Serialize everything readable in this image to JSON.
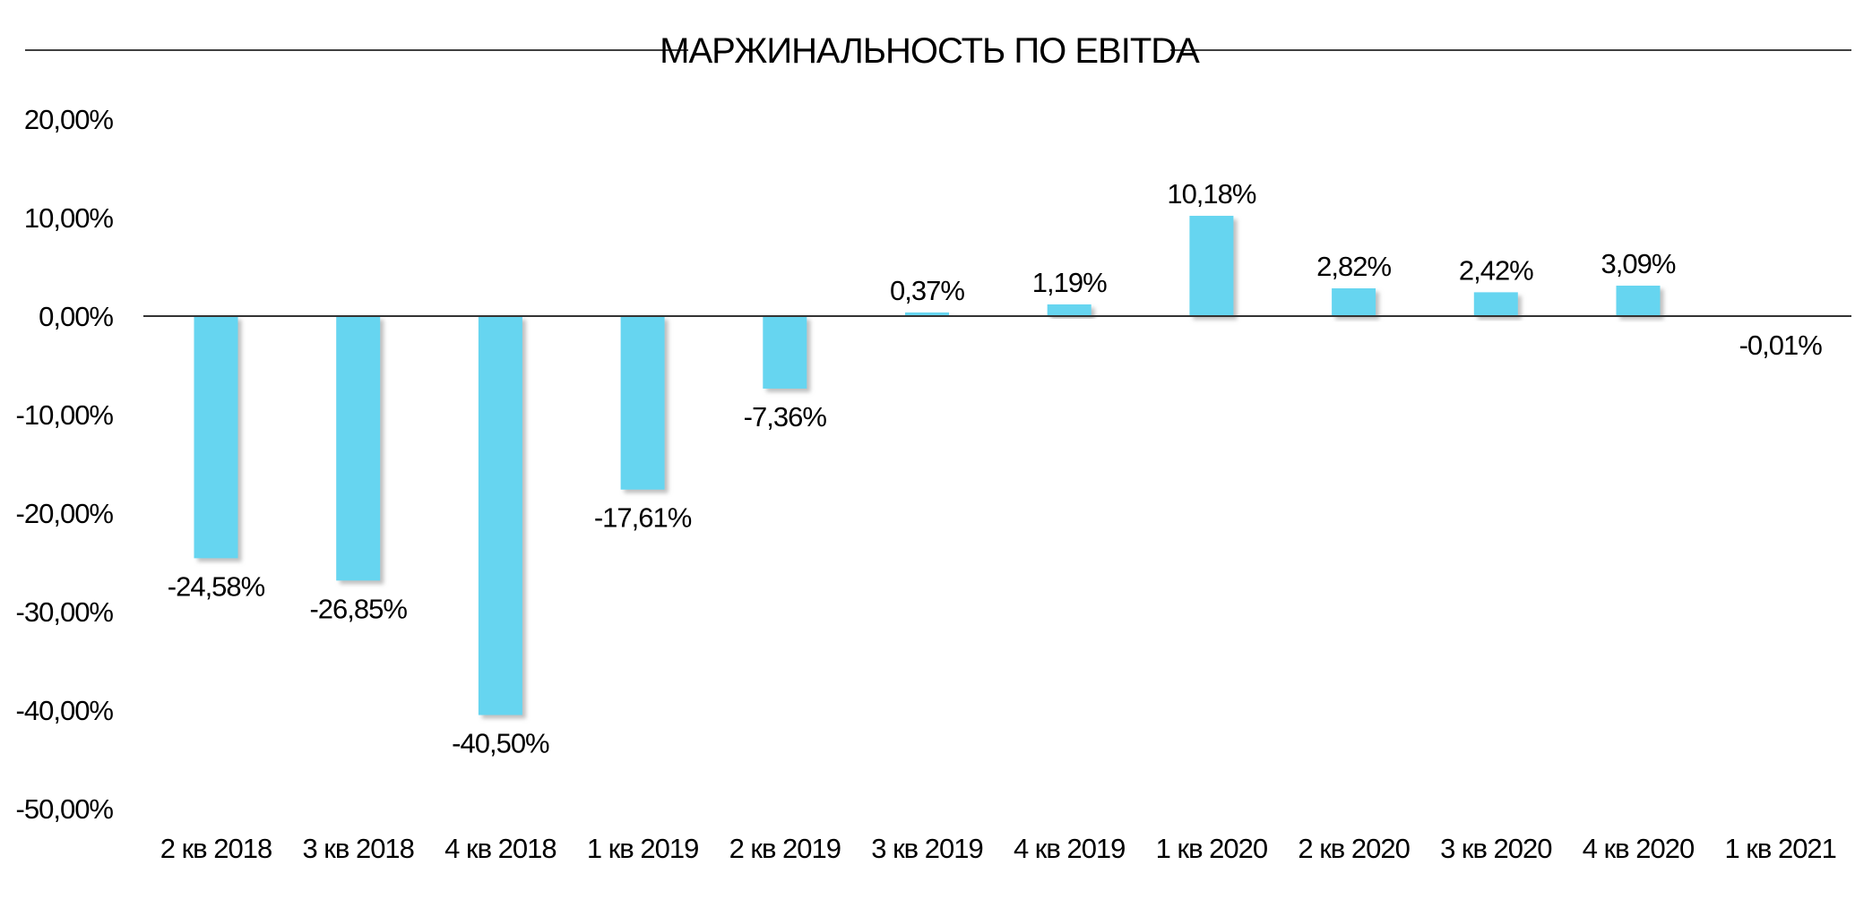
{
  "chart_data": {
    "type": "bar",
    "title": "МАРЖИНАЛЬНОСТЬ ПО EBITDA",
    "categories": [
      "2 кв 2018",
      "3 кв 2018",
      "4 кв 2018",
      "1 кв 2019",
      "2 кв 2019",
      "3 кв 2019",
      "4 кв 2019",
      "1 кв 2020",
      "2 кв 2020",
      "3 кв 2020",
      "4 кв 2020",
      "1 кв 2021"
    ],
    "values": [
      -24.58,
      -26.85,
      -40.5,
      -17.61,
      -7.36,
      0.37,
      1.19,
      10.18,
      2.82,
      2.42,
      3.09,
      -0.01
    ],
    "value_labels": [
      "-24,58%",
      "-26,85%",
      "-40,50%",
      "-17,61%",
      "-7,36%",
      "0,37%",
      "1,19%",
      "10,18%",
      "2,82%",
      "2,42%",
      "3,09%",
      "-0,01%"
    ],
    "y_ticks": [
      20,
      10,
      0,
      -10,
      -20,
      -30,
      -40,
      -50
    ],
    "y_tick_labels": [
      "20,00%",
      "10,00%",
      "0,00%",
      "-10,00%",
      "-20,00%",
      "-30,00%",
      "-40,00%",
      "-50,00%"
    ],
    "ylim": [
      -50,
      20
    ],
    "xlabel": "",
    "ylabel": "",
    "grid": false,
    "legend": "none",
    "colors": {
      "bar": "#66d5f0",
      "shadow": "#9a9a9a",
      "axis": "#000000",
      "text": "#000000"
    }
  }
}
